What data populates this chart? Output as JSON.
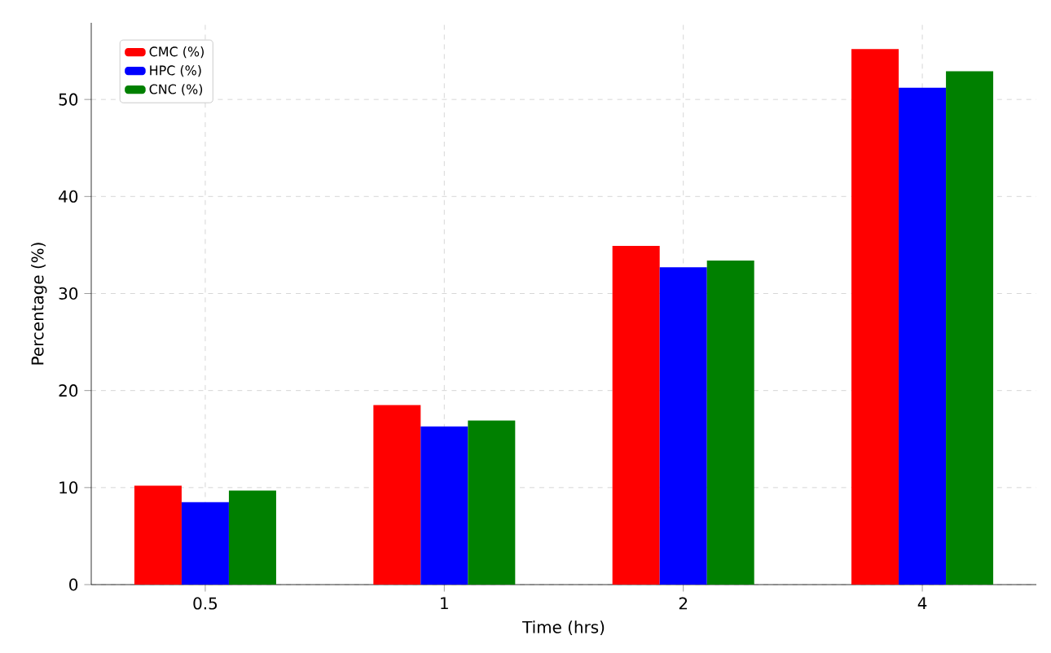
{
  "chart_data": {
    "type": "bar",
    "xlabel": "Time (hrs)",
    "ylabel": "Percentage (%)",
    "categories": [
      "0.5",
      "1",
      "2",
      "4"
    ],
    "series": [
      {
        "name": "CMC (%)",
        "color": "#ff0000",
        "values": [
          10.2,
          18.5,
          34.9,
          55.2
        ]
      },
      {
        "name": "HPC (%)",
        "color": "#0000ff",
        "values": [
          8.5,
          16.3,
          32.7,
          51.2
        ]
      },
      {
        "name": "CNC (%)",
        "color": "#008000",
        "values": [
          9.7,
          16.9,
          33.4,
          52.9
        ]
      }
    ],
    "ylim": [
      0,
      57.9
    ],
    "yticks": [
      0,
      10,
      20,
      30,
      40,
      50
    ],
    "grid": true,
    "legend": "top left"
  }
}
